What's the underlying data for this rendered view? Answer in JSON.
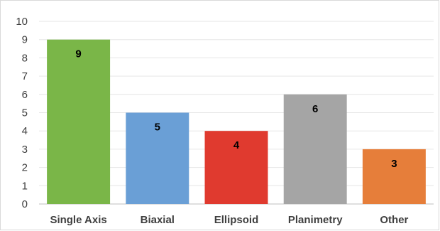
{
  "chart_data": {
    "type": "bar",
    "title": "",
    "xlabel": "",
    "ylabel": "",
    "categories": [
      "Single Axis",
      "Biaxial",
      "Ellipsoid",
      "Planimetry",
      "Other"
    ],
    "values": [
      9,
      5,
      4,
      6,
      3
    ],
    "colors": [
      "#7ab648",
      "#6a9fd6",
      "#e03a2f",
      "#a5a5a5",
      "#e67e3a"
    ],
    "ylim": [
      0,
      10
    ],
    "yticks": [
      0,
      1,
      2,
      3,
      4,
      5,
      6,
      7,
      8,
      9,
      10
    ],
    "grid": true,
    "legend": "none",
    "data_labels": true
  }
}
